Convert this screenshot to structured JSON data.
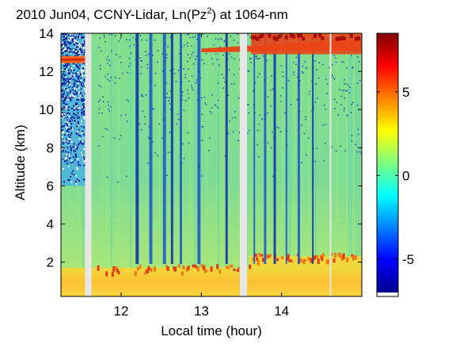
{
  "chart_data": {
    "type": "heatmap",
    "title": "2010 Jun04, CCNY-Lidar, Ln(Pz",
    "title_superscript": "2",
    "title_suffix": ") at 1064-nm",
    "xlabel": "Local time (hour)",
    "ylabel": "Altitude (km)",
    "xlim": [
      11.25,
      15.0
    ],
    "ylim": [
      0.2,
      14.0
    ],
    "x_ticks": [
      12,
      13,
      14
    ],
    "x_tick_labels": [
      "12",
      "13",
      "14"
    ],
    "y_ticks": [
      2,
      4,
      6,
      8,
      10,
      12,
      14
    ],
    "y_tick_labels": [
      "2",
      "4",
      "6",
      "8",
      "10",
      "12",
      "14"
    ],
    "colorbar": {
      "lim": [
        -7.0,
        8.5
      ],
      "ticks": [
        -5,
        0,
        5
      ],
      "tick_labels": [
        "-5",
        "0",
        "5"
      ],
      "colormap": "jet"
    },
    "data_gaps_hours": [
      [
        11.55,
        11.63
      ],
      [
        13.48,
        13.57
      ]
    ],
    "thin_gaps_hours": [
      14.6
    ],
    "features": {
      "boundary_layer_top_km": 1.7,
      "boundary_layer_top_afternoon_km": 2.3,
      "early_aerosol_layer": {
        "x": [
          11.25,
          11.55
        ],
        "altitude_km": 12.6
      },
      "cirrus_cloud": {
        "x": [
          13.0,
          15.0
        ],
        "altitude_km_start": 13.2,
        "altitude_km_end": 13.6
      },
      "low_signal_region": {
        "x": [
          11.25,
          11.55
        ],
        "altitude_km": [
          6.0,
          14.0
        ]
      }
    }
  }
}
